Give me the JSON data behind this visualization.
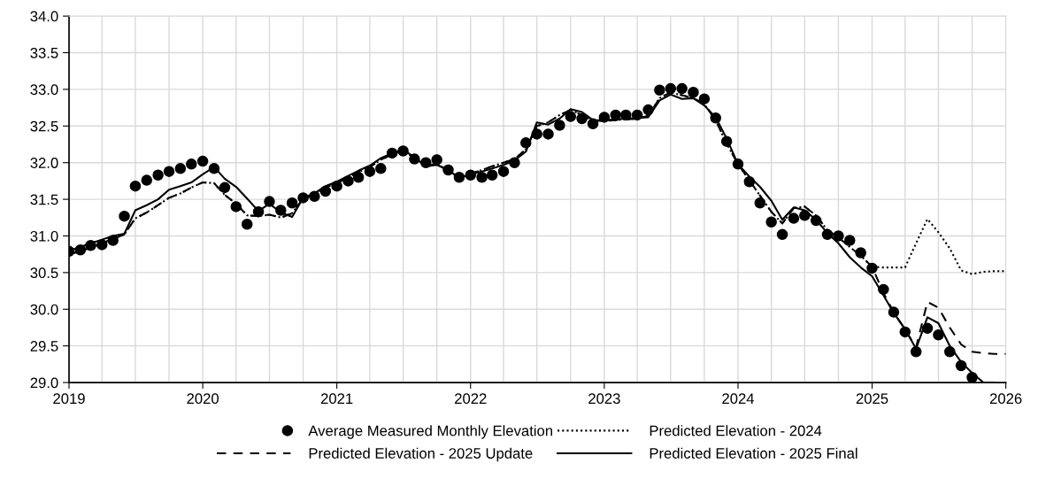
{
  "chart_data": {
    "type": "line",
    "xlim": [
      "2019-01",
      "2026-01"
    ],
    "ylim": [
      29.0,
      34.0
    ],
    "xticks": [
      {
        "value": "2019-01",
        "label": "2019"
      },
      {
        "value": "2019-04",
        "label": null
      },
      {
        "value": "2019-07",
        "label": null
      },
      {
        "value": "2019-10",
        "label": null
      },
      {
        "value": "2020-01",
        "label": "2020"
      },
      {
        "value": "2020-04",
        "label": null
      },
      {
        "value": "2020-07",
        "label": null
      },
      {
        "value": "2020-10",
        "label": null
      },
      {
        "value": "2021-01",
        "label": "2021"
      },
      {
        "value": "2021-04",
        "label": null
      },
      {
        "value": "2021-07",
        "label": null
      },
      {
        "value": "2021-10",
        "label": null
      },
      {
        "value": "2022-01",
        "label": "2022"
      },
      {
        "value": "2022-04",
        "label": null
      },
      {
        "value": "2022-07",
        "label": null
      },
      {
        "value": "2022-10",
        "label": null
      },
      {
        "value": "2023-01",
        "label": "2023"
      },
      {
        "value": "2023-04",
        "label": null
      },
      {
        "value": "2023-07",
        "label": null
      },
      {
        "value": "2023-10",
        "label": null
      },
      {
        "value": "2024-01",
        "label": "2024"
      },
      {
        "value": "2024-04",
        "label": null
      },
      {
        "value": "2024-07",
        "label": null
      },
      {
        "value": "2024-10",
        "label": null
      },
      {
        "value": "2025-01",
        "label": "2025"
      },
      {
        "value": "2025-04",
        "label": null
      },
      {
        "value": "2025-07",
        "label": null
      },
      {
        "value": "2025-10",
        "label": null
      },
      {
        "value": "2026-01",
        "label": "2026"
      }
    ],
    "yticks": [
      {
        "value": 29.0,
        "label": "29.0"
      },
      {
        "value": 29.5,
        "label": "29.5"
      },
      {
        "value": 30.0,
        "label": "30.0"
      },
      {
        "value": 30.5,
        "label": "30.5"
      },
      {
        "value": 31.0,
        "label": "31.0"
      },
      {
        "value": 31.5,
        "label": "31.5"
      },
      {
        "value": 32.0,
        "label": "32.0"
      },
      {
        "value": 32.5,
        "label": "32.5"
      },
      {
        "value": 33.0,
        "label": "33.0"
      },
      {
        "value": 33.5,
        "label": "33.5"
      },
      {
        "value": 34.0,
        "label": "34.0"
      }
    ],
    "grid": true,
    "legend": "bottom",
    "series": [
      {
        "name": "Average Measured Monthly Elevation",
        "type": "scatter",
        "marker": "circle",
        "color": "#000000",
        "x": [
          "2019-01",
          "2019-02",
          "2019-03",
          "2019-04",
          "2019-05",
          "2019-06",
          "2019-07",
          "2019-08",
          "2019-09",
          "2019-10",
          "2019-11",
          "2019-12",
          "2020-01",
          "2020-02",
          "2020-03",
          "2020-04",
          "2020-05",
          "2020-06",
          "2020-07",
          "2020-08",
          "2020-09",
          "2020-10",
          "2020-11",
          "2020-12",
          "2021-01",
          "2021-02",
          "2021-03",
          "2021-04",
          "2021-05",
          "2021-06",
          "2021-07",
          "2021-08",
          "2021-09",
          "2021-10",
          "2021-11",
          "2021-12",
          "2022-01",
          "2022-02",
          "2022-03",
          "2022-04",
          "2022-05",
          "2022-06",
          "2022-07",
          "2022-08",
          "2022-09",
          "2022-10",
          "2022-11",
          "2022-12",
          "2023-01",
          "2023-02",
          "2023-03",
          "2023-04",
          "2023-05",
          "2023-06",
          "2023-07",
          "2023-08",
          "2023-09",
          "2023-10",
          "2023-11",
          "2023-12",
          "2024-01",
          "2024-02",
          "2024-03",
          "2024-04",
          "2024-05",
          "2024-06",
          "2024-07",
          "2024-08",
          "2024-09",
          "2024-10",
          "2024-11",
          "2024-12",
          "2025-01",
          "2025-02",
          "2025-03",
          "2025-04",
          "2025-05",
          "2025-06",
          "2025-07",
          "2025-08",
          "2025-09",
          "2025-10"
        ],
        "values": [
          30.79,
          30.81,
          30.87,
          30.88,
          30.94,
          31.27,
          31.68,
          31.76,
          31.83,
          31.88,
          31.92,
          31.98,
          32.02,
          31.92,
          31.66,
          31.4,
          31.16,
          31.33,
          31.47,
          31.35,
          31.45,
          31.52,
          31.54,
          31.61,
          31.68,
          31.75,
          31.8,
          31.88,
          31.92,
          32.13,
          32.16,
          32.05,
          32.0,
          32.04,
          31.9,
          31.8,
          31.83,
          31.8,
          31.83,
          31.88,
          32.0,
          32.27,
          32.39,
          32.39,
          32.51,
          32.63,
          32.6,
          32.53,
          32.62,
          32.65,
          32.65,
          32.65,
          32.72,
          32.99,
          33.01,
          33.01,
          32.96,
          32.87,
          32.61,
          32.29,
          31.98,
          31.74,
          31.45,
          31.19,
          31.02,
          31.24,
          31.28,
          31.21,
          31.02,
          31.0,
          30.94,
          30.77,
          30.56,
          30.27,
          29.96,
          29.69,
          29.42,
          29.74,
          29.65,
          29.42,
          29.23,
          29.07
        ]
      },
      {
        "name": "Predicted Elevation - 2024",
        "type": "line",
        "line_style": "dotted",
        "color": "#000000",
        "x": [
          "2019-01",
          "2019-02",
          "2019-03",
          "2019-04",
          "2019-05",
          "2019-06",
          "2019-07",
          "2019-08",
          "2019-09",
          "2019-10",
          "2019-11",
          "2019-12",
          "2020-01",
          "2020-02",
          "2020-03",
          "2020-04",
          "2020-05",
          "2020-06",
          "2020-07",
          "2020-08",
          "2020-09",
          "2020-10",
          "2020-11",
          "2020-12",
          "2021-01",
          "2021-02",
          "2021-03",
          "2021-04",
          "2021-05",
          "2021-06",
          "2021-07",
          "2021-08",
          "2021-09",
          "2021-10",
          "2021-11",
          "2021-12",
          "2022-01",
          "2022-02",
          "2022-03",
          "2022-04",
          "2022-05",
          "2022-06",
          "2022-07",
          "2022-08",
          "2022-09",
          "2022-10",
          "2022-11",
          "2022-12",
          "2023-01",
          "2023-02",
          "2023-03",
          "2023-04",
          "2023-05",
          "2023-06",
          "2023-07",
          "2023-08",
          "2023-09",
          "2023-10",
          "2023-11",
          "2023-12",
          "2024-01",
          "2024-02",
          "2024-03",
          "2024-04",
          "2024-05",
          "2024-06",
          "2024-07",
          "2024-08",
          "2024-09",
          "2024-10",
          "2024-11",
          "2024-12",
          "2025-01",
          "2025-02",
          "2025-03",
          "2025-04",
          "2025-05",
          "2025-06",
          "2025-07",
          "2025-08",
          "2025-09",
          "2025-10",
          "2025-11",
          "2025-12",
          "2026-01"
        ],
        "values": [
          30.75,
          30.79,
          30.84,
          30.9,
          30.96,
          31.02,
          31.24,
          31.32,
          31.42,
          31.52,
          31.58,
          31.66,
          31.73,
          31.72,
          31.56,
          31.44,
          31.28,
          31.27,
          31.29,
          31.25,
          31.31,
          31.51,
          31.56,
          31.66,
          31.72,
          31.8,
          31.87,
          31.94,
          32.04,
          32.11,
          32.17,
          32.06,
          31.96,
          31.98,
          31.89,
          31.8,
          31.85,
          31.9,
          31.95,
          32.0,
          32.05,
          32.18,
          32.5,
          32.55,
          32.65,
          32.72,
          32.65,
          32.57,
          32.57,
          32.58,
          32.59,
          32.6,
          32.64,
          32.88,
          32.96,
          32.92,
          32.88,
          32.8,
          32.58,
          32.26,
          31.98,
          31.76,
          31.55,
          31.33,
          31.17,
          31.38,
          31.4,
          31.28,
          31.08,
          30.98,
          30.85,
          30.73,
          30.58,
          30.57,
          30.57,
          30.57,
          30.9,
          31.23,
          31.05,
          30.83,
          30.53,
          30.48,
          30.51,
          30.52,
          30.52
        ]
      },
      {
        "name": "Predicted Elevation - 2025 Update",
        "type": "line",
        "line_style": "dashed",
        "color": "#000000",
        "x": [
          "2019-01",
          "2019-02",
          "2019-03",
          "2019-04",
          "2019-05",
          "2019-06",
          "2019-07",
          "2019-08",
          "2019-09",
          "2019-10",
          "2019-11",
          "2019-12",
          "2020-01",
          "2020-02",
          "2020-03",
          "2020-04",
          "2020-05",
          "2020-06",
          "2020-07",
          "2020-08",
          "2020-09",
          "2020-10",
          "2020-11",
          "2020-12",
          "2021-01",
          "2021-02",
          "2021-03",
          "2021-04",
          "2021-05",
          "2021-06",
          "2021-07",
          "2021-08",
          "2021-09",
          "2021-10",
          "2021-11",
          "2021-12",
          "2022-01",
          "2022-02",
          "2022-03",
          "2022-04",
          "2022-05",
          "2022-06",
          "2022-07",
          "2022-08",
          "2022-09",
          "2022-10",
          "2022-11",
          "2022-12",
          "2023-01",
          "2023-02",
          "2023-03",
          "2023-04",
          "2023-05",
          "2023-06",
          "2023-07",
          "2023-08",
          "2023-09",
          "2023-10",
          "2023-11",
          "2023-12",
          "2024-01",
          "2024-02",
          "2024-03",
          "2024-04",
          "2024-05",
          "2024-06",
          "2024-07",
          "2024-08",
          "2024-09",
          "2024-10",
          "2024-11",
          "2024-12",
          "2025-01",
          "2025-02",
          "2025-03",
          "2025-04",
          "2025-05",
          "2025-06",
          "2025-07",
          "2025-08",
          "2025-09",
          "2025-10",
          "2025-11",
          "2025-12",
          "2026-01"
        ],
        "values": [
          30.75,
          30.79,
          30.84,
          30.9,
          30.96,
          31.02,
          31.24,
          31.32,
          31.42,
          31.52,
          31.58,
          31.66,
          31.73,
          31.72,
          31.56,
          31.44,
          31.28,
          31.27,
          31.29,
          31.25,
          31.31,
          31.51,
          31.56,
          31.66,
          31.72,
          31.8,
          31.87,
          31.94,
          32.04,
          32.11,
          32.17,
          32.06,
          31.96,
          31.98,
          31.89,
          31.8,
          31.85,
          31.9,
          31.95,
          32.0,
          32.05,
          32.18,
          32.5,
          32.55,
          32.65,
          32.72,
          32.65,
          32.57,
          32.57,
          32.58,
          32.59,
          32.6,
          32.64,
          32.88,
          32.96,
          32.92,
          32.88,
          32.8,
          32.58,
          32.26,
          31.98,
          31.76,
          31.55,
          31.33,
          31.17,
          31.38,
          31.4,
          31.28,
          31.08,
          30.98,
          30.85,
          30.73,
          30.58,
          30.22,
          29.96,
          29.72,
          29.48,
          30.1,
          30.02,
          29.75,
          29.52,
          29.42,
          29.4,
          29.39,
          29.39
        ]
      },
      {
        "name": "Predicted Elevation - 2025 Final",
        "type": "line",
        "line_style": "solid",
        "color": "#000000",
        "x": [
          "2019-01",
          "2019-02",
          "2019-03",
          "2019-04",
          "2019-05",
          "2019-06",
          "2019-07",
          "2019-08",
          "2019-09",
          "2019-10",
          "2019-11",
          "2019-12",
          "2020-01",
          "2020-02",
          "2020-03",
          "2020-04",
          "2020-05",
          "2020-06",
          "2020-07",
          "2020-08",
          "2020-09",
          "2020-10",
          "2020-11",
          "2020-12",
          "2021-01",
          "2021-02",
          "2021-03",
          "2021-04",
          "2021-05",
          "2021-06",
          "2021-07",
          "2021-08",
          "2021-09",
          "2021-10",
          "2021-11",
          "2021-12",
          "2022-01",
          "2022-02",
          "2022-03",
          "2022-04",
          "2022-05",
          "2022-06",
          "2022-07",
          "2022-08",
          "2022-09",
          "2022-10",
          "2022-11",
          "2022-12",
          "2023-01",
          "2023-02",
          "2023-03",
          "2023-04",
          "2023-05",
          "2023-06",
          "2023-07",
          "2023-08",
          "2023-09",
          "2023-10",
          "2023-11",
          "2023-12",
          "2024-01",
          "2024-02",
          "2024-03",
          "2024-04",
          "2024-05",
          "2024-06",
          "2024-07",
          "2024-08",
          "2024-09",
          "2024-10",
          "2024-11",
          "2024-12",
          "2025-01",
          "2025-02",
          "2025-03",
          "2025-04",
          "2025-05",
          "2025-06",
          "2025-07",
          "2025-08",
          "2025-09",
          "2025-10",
          "2025-11",
          "2025-12"
        ],
        "values": [
          30.8,
          30.85,
          30.9,
          30.95,
          31.0,
          31.03,
          31.35,
          31.42,
          31.5,
          31.63,
          31.68,
          31.73,
          31.84,
          31.94,
          31.78,
          31.67,
          31.51,
          31.34,
          31.44,
          31.32,
          31.26,
          31.52,
          31.58,
          31.68,
          31.74,
          31.82,
          31.89,
          31.96,
          32.06,
          32.13,
          32.18,
          32.07,
          31.95,
          31.97,
          31.9,
          31.79,
          31.84,
          31.88,
          31.92,
          31.97,
          32.03,
          32.15,
          32.55,
          32.52,
          32.6,
          32.73,
          32.69,
          32.58,
          32.58,
          32.59,
          32.6,
          32.61,
          32.62,
          32.85,
          32.93,
          32.87,
          32.88,
          32.78,
          32.62,
          32.33,
          31.98,
          31.81,
          31.67,
          31.48,
          31.22,
          31.39,
          31.35,
          31.22,
          31.04,
          30.9,
          30.71,
          30.57,
          30.45,
          30.19,
          29.95,
          29.73,
          29.46,
          29.89,
          29.81,
          29.5,
          29.28,
          29.13,
          29.0,
          29.0
        ]
      }
    ]
  }
}
